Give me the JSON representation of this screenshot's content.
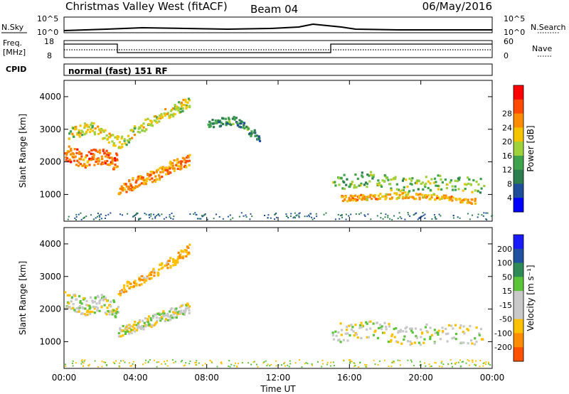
{
  "header": {
    "station": "Christmas Valley West (fitACF)",
    "beam": "Beam 04",
    "date": "06/May/2016"
  },
  "strip": {
    "left_top": "N.Sky",
    "right_top": "N.Search",
    "freq_label_1": "Freq.",
    "freq_label_2": "[MHz]",
    "nave_label": "Nave",
    "cpid_label": "CPID",
    "cpid_text": "normal (fast) 151 RF",
    "nsky_ticks": [
      "10^5",
      "10^0"
    ],
    "nsearch_ticks": [
      "10^5",
      "10^0"
    ],
    "freq_ticks": [
      "18",
      "8"
    ],
    "nave_ticks": [
      "60",
      "0"
    ]
  },
  "colors": {
    "power_scale": [
      "#0000ff",
      "#1f4f9a",
      "#2e7d4f",
      "#3fa34d",
      "#9fd13b",
      "#f5c400",
      "#ff8c00",
      "#ff4a00",
      "#ff0000"
    ],
    "velocity_scale": [
      "#1a1aff",
      "#2050a0",
      "#2e8b57",
      "#5cc43a",
      "#c8c8c8",
      "#c8c8c8",
      "#ffc000",
      "#ff8c00",
      "#ff5000",
      "#ff0000"
    ]
  },
  "chart_data": [
    {
      "type": "heatmap",
      "title": "Power",
      "xlabel": "Time UT",
      "ylabel": "Slant Range [km]",
      "x_ticks": [
        "00:00",
        "04:00",
        "08:00",
        "12:00",
        "16:00",
        "20:00",
        "00:00"
      ],
      "y_ticks": [
        1000,
        2000,
        3000,
        4000
      ],
      "xlim": [
        0,
        24
      ],
      "ylim": [
        180,
        4500
      ],
      "colorbar": {
        "label": "Power [dB]",
        "ticks": [
          4,
          8,
          12,
          16,
          20,
          24,
          28
        ]
      },
      "bands": [
        {
          "t": [
            0.0,
            1.0,
            2.0,
            3.0
          ],
          "range": [
            2300,
            2100,
            2200,
            2000
          ],
          "width": 500,
          "level": 26
        },
        {
          "t": [
            3.0,
            4.0,
            5.0,
            6.0,
            7.0
          ],
          "range": [
            1200,
            1400,
            1600,
            1900,
            2100
          ],
          "width": 350,
          "level": 24
        },
        {
          "t": [
            0.2,
            1.5,
            3.0,
            4.5,
            6.0,
            7.0
          ],
          "range": [
            2900,
            3100,
            2600,
            3200,
            3600,
            3900
          ],
          "width": 350,
          "level": 18
        },
        {
          "t": [
            8.0,
            9.5,
            11.0
          ],
          "range": [
            3200,
            3300,
            2700
          ],
          "width": 250,
          "level": 10
        },
        {
          "t": [
            15.0,
            17.0,
            19.0,
            21.0,
            23.5
          ],
          "range": [
            1400,
            1500,
            1300,
            1400,
            1300
          ],
          "width": 450,
          "level": 14
        },
        {
          "t": [
            15.5,
            17.0,
            19.0,
            21.0,
            23.0
          ],
          "range": [
            900,
            950,
            1000,
            950,
            800
          ],
          "width": 180,
          "level": 22
        }
      ]
    },
    {
      "type": "heatmap",
      "title": "Velocity",
      "xlabel": "Time UT",
      "ylabel": "Slant Range [km]",
      "x_ticks": [
        "00:00",
        "04:00",
        "08:00",
        "12:00",
        "16:00",
        "20:00",
        "00:00"
      ],
      "y_ticks": [
        1000,
        2000,
        3000,
        4000
      ],
      "xlim": [
        0,
        24
      ],
      "ylim": [
        180,
        4500
      ],
      "colorbar": {
        "label": "Velocity [m s⁻¹]",
        "ticks": [
          200,
          100,
          50,
          15,
          -15,
          -50,
          -100,
          -200
        ]
      },
      "bands": [
        {
          "t": [
            0.0,
            1.0,
            2.0,
            3.0
          ],
          "range": [
            2300,
            2100,
            2200,
            2000
          ],
          "width": 550,
          "level": 0
        },
        {
          "t": [
            3.0,
            4.0,
            5.0,
            6.0,
            7.0
          ],
          "range": [
            1300,
            1500,
            1700,
            1900,
            2100
          ],
          "width": 350,
          "level": 0
        },
        {
          "t": [
            3.0,
            4.5,
            6.0,
            7.0
          ],
          "range": [
            2600,
            3000,
            3500,
            3900
          ],
          "width": 300,
          "level": -40
        },
        {
          "t": [
            15.0,
            17.0,
            19.0,
            21.0,
            23.5
          ],
          "range": [
            1300,
            1400,
            1200,
            1300,
            1200
          ],
          "width": 600,
          "level": 0
        }
      ]
    }
  ]
}
